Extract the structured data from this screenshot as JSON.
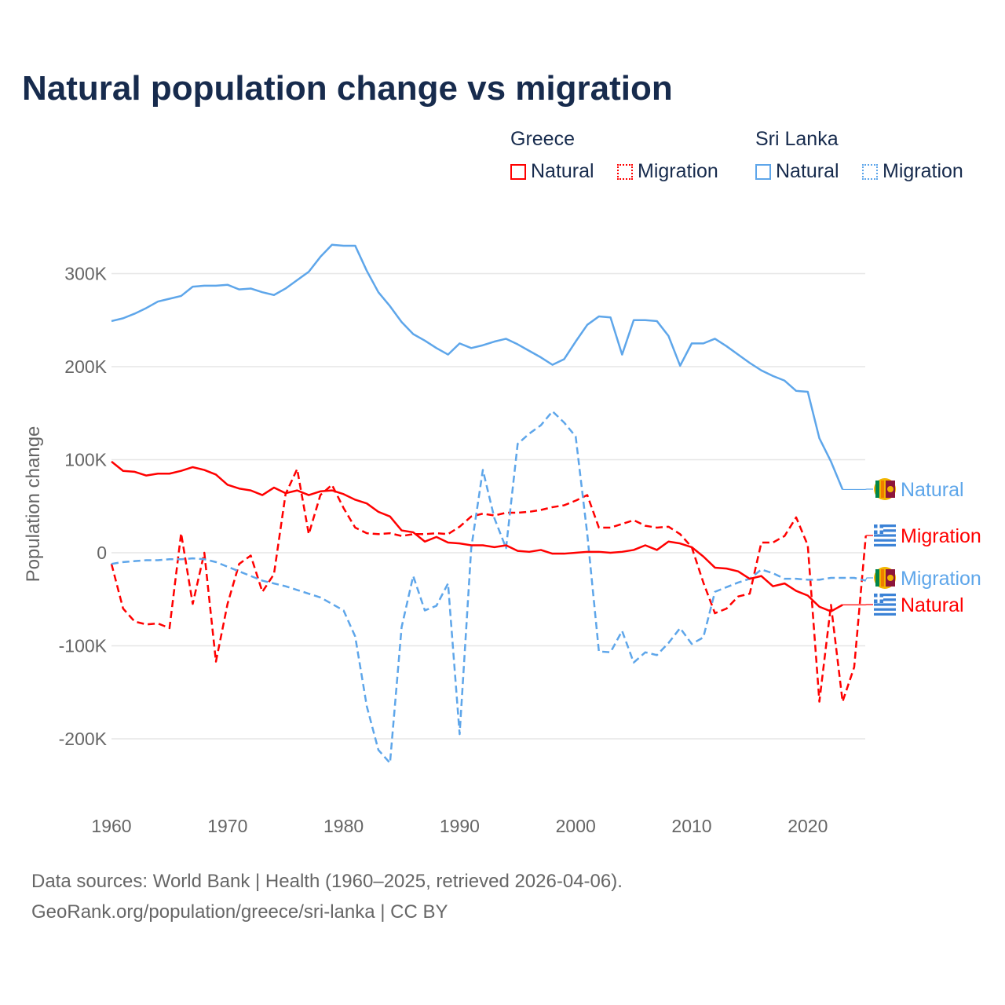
{
  "title": "Natural population change vs migration",
  "legend": {
    "groups": [
      {
        "name": "Greece",
        "items": [
          "Natural",
          "Migration"
        ]
      },
      {
        "name": "Sri Lanka",
        "items": [
          "Natural",
          "Migration"
        ]
      }
    ]
  },
  "footer": [
    "Data sources: World Bank | Health (1960–2025, retrieved 2026-04-06).",
    "GeoRank.org/population/greece/sri-lanka | CC BY"
  ],
  "colors": {
    "greece": "#ff0000",
    "sri_lanka": "#5ea6ea",
    "title": "#172b4d"
  },
  "chart_data": {
    "type": "line",
    "title": "Natural population change vs migration",
    "ylabel": "Population change",
    "xlabel": "",
    "ylim": [
      -250000,
      340000
    ],
    "xlim": [
      1960,
      2025
    ],
    "yticks": [
      {
        "v": 300000,
        "label": "300K"
      },
      {
        "v": 200000,
        "label": "200K"
      },
      {
        "v": 100000,
        "label": "100K"
      },
      {
        "v": 0,
        "label": "0"
      },
      {
        "v": -100000,
        "label": "-100K"
      },
      {
        "v": -200000,
        "label": "-200K"
      }
    ],
    "xticks": [
      1960,
      1970,
      1980,
      1990,
      2000,
      2010,
      2020
    ],
    "grid": true,
    "series": [
      {
        "name": "Sri Lanka Natural",
        "country": "Sri Lanka",
        "kind": "Natural",
        "color": "#5ea6ea",
        "dash": false,
        "start": 1960,
        "end_label": "Natural",
        "label_y": 623,
        "values": [
          249,
          252,
          257,
          263,
          270,
          273,
          276,
          286,
          287,
          287,
          288,
          283,
          284,
          280,
          277,
          284,
          293,
          302,
          318,
          331,
          330,
          330,
          303,
          280,
          265,
          248,
          235,
          228,
          220,
          213,
          225,
          220,
          223,
          227,
          230,
          224,
          217,
          210,
          202,
          208,
          227,
          245,
          254,
          253,
          213,
          250,
          250,
          249,
          233,
          201,
          225,
          225,
          230,
          222,
          213,
          204,
          196,
          190,
          185,
          174,
          173,
          123,
          98,
          68
        ]
      },
      {
        "name": "Greece Migration",
        "country": "Greece",
        "kind": "Migration",
        "color": "#ff0000",
        "dash": true,
        "start": 1960,
        "end_label": "Migration",
        "label_y": 682,
        "values": [
          -12,
          -60,
          -74,
          -77,
          -76,
          -81,
          21,
          -55,
          0,
          -117,
          -55,
          -12,
          -3,
          -42,
          -23,
          63,
          90,
          20,
          62,
          73,
          48,
          27,
          21,
          20,
          21,
          18,
          20,
          20,
          21,
          20,
          28,
          39,
          42,
          40,
          43,
          43,
          44,
          46,
          49,
          51,
          56,
          62,
          27,
          27,
          31,
          35,
          29,
          27,
          28,
          20,
          6,
          -32,
          -65,
          -60,
          -47,
          -44,
          11,
          11,
          18,
          38,
          8,
          -160,
          -56,
          -160,
          -123,
          18
        ]
      },
      {
        "name": "Sri Lanka Migration",
        "country": "Sri Lanka",
        "kind": "Migration",
        "color": "#5ea6ea",
        "dash": true,
        "start": 1960,
        "end_label": "Migration",
        "label_y": 736,
        "values": [
          -12,
          -10,
          -9,
          -8,
          -8,
          -7,
          -7,
          -6,
          -7,
          -10,
          -15,
          -20,
          -25,
          -30,
          -33,
          -36,
          -40,
          -44,
          -48,
          -55,
          -62,
          -90,
          -165,
          -212,
          -226,
          -80,
          -25,
          -62,
          -57,
          -33,
          -195,
          5,
          89,
          37,
          5,
          117,
          128,
          137,
          152,
          140,
          125,
          20,
          -106,
          -107,
          -84,
          -118,
          -107,
          -110,
          -97,
          -81,
          -98,
          -91,
          -42,
          -37,
          -32,
          -28,
          -18,
          -22,
          -28,
          -28,
          -29,
          -29,
          -27,
          -27,
          -27,
          -30
        ]
      },
      {
        "name": "Greece Natural",
        "country": "Greece",
        "kind": "Natural",
        "color": "#ff0000",
        "dash": false,
        "start": 1960,
        "end_label": "Natural",
        "label_y": 770,
        "values": [
          98,
          88,
          87,
          83,
          85,
          85,
          88,
          92,
          89,
          84,
          73,
          69,
          67,
          62,
          70,
          64,
          67,
          62,
          66,
          67,
          63,
          57,
          53,
          44,
          39,
          24,
          22,
          12,
          17,
          11,
          10,
          8,
          8,
          6,
          8,
          2,
          1,
          3,
          -1,
          -1,
          0,
          1,
          1,
          0,
          1,
          3,
          8,
          3,
          12,
          10,
          6,
          -4,
          -16,
          -17,
          -20,
          -28,
          -25,
          -36,
          -33,
          -41,
          -46,
          -58,
          -63,
          -56
        ]
      }
    ],
    "value_unit": "thousands"
  }
}
